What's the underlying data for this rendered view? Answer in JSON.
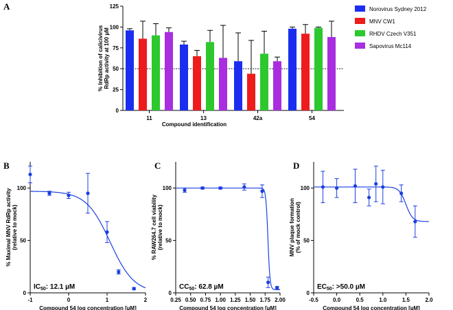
{
  "panel_labels": {
    "a": "A",
    "b": "B",
    "c": "C",
    "d": "D"
  },
  "chart_data": [
    {
      "type": "bar",
      "panel": "A",
      "ylabel_line1": "% Inhibition of calicivirus",
      "ylabel_line2": "RdRp activity at 100 µM",
      "xlabel": "Compound identification",
      "ylim": [
        0,
        125
      ],
      "yticks": [
        0,
        25,
        50,
        75,
        100,
        125
      ],
      "reference_line": 50,
      "categories": [
        "11",
        "13",
        "42a",
        "54"
      ],
      "series": [
        {
          "name": "Norovirus Sydney 2012",
          "color": "#1b2ef0",
          "values": [
            96,
            79,
            59,
            98
          ],
          "errors": [
            2,
            4,
            34,
            2
          ]
        },
        {
          "name": "MNV CW1",
          "color": "#ee1c1c",
          "values": [
            86,
            65,
            44,
            92
          ],
          "errors": [
            21,
            7,
            40,
            11
          ]
        },
        {
          "name": "RHDV Czech V351",
          "color": "#2dc82d",
          "values": [
            90,
            82,
            68,
            99
          ],
          "errors": [
            14,
            14,
            27,
            1
          ]
        },
        {
          "name": "Sapovirus Mc114",
          "color": "#a92ee0",
          "values": [
            94,
            63,
            59,
            88
          ],
          "errors": [
            5,
            39,
            5,
            19
          ]
        }
      ]
    },
    {
      "type": "scatter",
      "panel": "B",
      "ylabel_line1": "% Maximal MNV RdRp activity",
      "ylabel_line2": "(relative to mock)",
      "xlabel": "Compound 54 log concentration [µM]",
      "xlim": [
        -1,
        2
      ],
      "xticks": [
        -1,
        0,
        1,
        2
      ],
      "xtick_labels": [
        "-1",
        "0",
        "1",
        "2"
      ],
      "ylim": [
        0,
        125
      ],
      "yticks": [
        0,
        50,
        100
      ],
      "annotation_prefix": "IC",
      "annotation_sub": "50",
      "annotation_value": ": 12.1 µM",
      "points": [
        {
          "x": -1.0,
          "y": 113,
          "err": 8
        },
        {
          "x": -0.5,
          "y": 95,
          "err": 2
        },
        {
          "x": 0.0,
          "y": 93,
          "err": 3
        },
        {
          "x": 0.5,
          "y": 95,
          "err": 19
        },
        {
          "x": 1.0,
          "y": 58,
          "err": 10
        },
        {
          "x": 1.3,
          "y": 20,
          "err": 2
        },
        {
          "x": 1.7,
          "y": 4,
          "err": 1
        }
      ],
      "fit": {
        "top": 97,
        "bottom": 0,
        "logc50": 1.08,
        "hill": -1.4
      }
    },
    {
      "type": "scatter",
      "panel": "C",
      "ylabel_line1": "% RAW264.7 cell viability",
      "ylabel_line2": "(relative to mock)",
      "xlabel": "Compound 54 log concentration [µM]",
      "xlim": [
        0.25,
        2.0
      ],
      "xticks": [
        0.25,
        0.5,
        0.75,
        1.0,
        1.25,
        1.5,
        1.75,
        2.0
      ],
      "xtick_labels": [
        "0.25",
        "0.50",
        "0.75",
        "1.00",
        "1.25",
        "1.50",
        "1.75",
        "2.00"
      ],
      "ylim": [
        0,
        125
      ],
      "yticks": [
        0,
        50,
        100
      ],
      "annotation_prefix": "CC",
      "annotation_sub": "50",
      "annotation_value": ": 62.8 µM",
      "points": [
        {
          "x": 0.4,
          "y": 98,
          "err": 2
        },
        {
          "x": 0.7,
          "y": 100,
          "err": 1
        },
        {
          "x": 1.0,
          "y": 100,
          "err": 1
        },
        {
          "x": 1.4,
          "y": 101,
          "err": 3
        },
        {
          "x": 1.7,
          "y": 97,
          "err": 6
        },
        {
          "x": 1.8,
          "y": 10,
          "err": 5
        },
        {
          "x": 1.95,
          "y": 5,
          "err": 1
        }
      ],
      "fit": {
        "top": 100,
        "bottom": 3,
        "logc50": 1.797,
        "hill": -25
      }
    },
    {
      "type": "scatter",
      "panel": "D",
      "ylabel_line1": "MNV plaque formation",
      "ylabel_line2": "(% of mock control)",
      "xlabel": "Compound 54 log concentration [µM]",
      "xlim": [
        -0.5,
        2.0
      ],
      "xticks": [
        -0.5,
        0.0,
        0.5,
        1.0,
        1.5,
        2.0
      ],
      "xtick_labels": [
        "-0.5",
        "0.0",
        "0.5",
        "1.0",
        "1.5",
        "2.0"
      ],
      "ylim": [
        0,
        125
      ],
      "yticks": [
        0,
        50,
        100
      ],
      "annotation_prefix": "EC",
      "annotation_sub": "50",
      "annotation_value": ": >50.0 µM",
      "points": [
        {
          "x": -0.3,
          "y": 101,
          "err": 15
        },
        {
          "x": 0.0,
          "y": 100,
          "err": 9
        },
        {
          "x": 0.4,
          "y": 102,
          "err": 16
        },
        {
          "x": 0.7,
          "y": 91,
          "err": 8
        },
        {
          "x": 0.85,
          "y": 104,
          "err": 17
        },
        {
          "x": 1.0,
          "y": 101,
          "err": 16
        },
        {
          "x": 1.4,
          "y": 95,
          "err": 8
        },
        {
          "x": 1.7,
          "y": 68,
          "err": 15
        }
      ],
      "fit": {
        "top": 101,
        "bottom": 68,
        "logc50": 1.5,
        "hill": -6
      }
    }
  ]
}
